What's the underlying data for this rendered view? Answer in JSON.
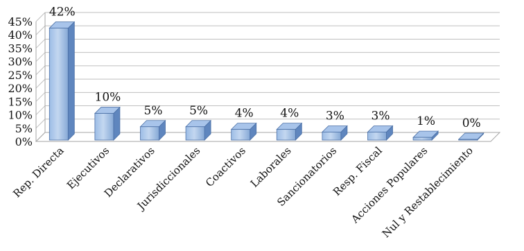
{
  "chart_data": {
    "type": "bar",
    "title": "",
    "xlabel": "",
    "ylabel": "",
    "ylim": [
      0,
      45
    ],
    "y_ticks": [
      0,
      5,
      10,
      15,
      20,
      25,
      30,
      35,
      40,
      45
    ],
    "y_tick_labels": [
      "0%",
      "5%",
      "10%",
      "15%",
      "20%",
      "25%",
      "30%",
      "35%",
      "40%",
      "45%"
    ],
    "grid": true,
    "style": "3d-columns",
    "bar_color": "#8db3e2",
    "categories": [
      "Rep. Directa",
      "Ejecutivos",
      "Declarativos",
      "Jurisdiccionales",
      "Coactivos",
      "Laborales",
      "Sancionatorios",
      "Resp. Fiscal",
      "Acciones Populares",
      "Nul y Restablecimiento"
    ],
    "values": [
      42,
      10,
      5,
      5,
      4,
      4,
      3,
      3,
      1,
      0
    ],
    "data_labels": [
      "42%",
      "10%",
      "5%",
      "5%",
      "4%",
      "4%",
      "3%",
      "3%",
      "1%",
      "0%"
    ]
  }
}
